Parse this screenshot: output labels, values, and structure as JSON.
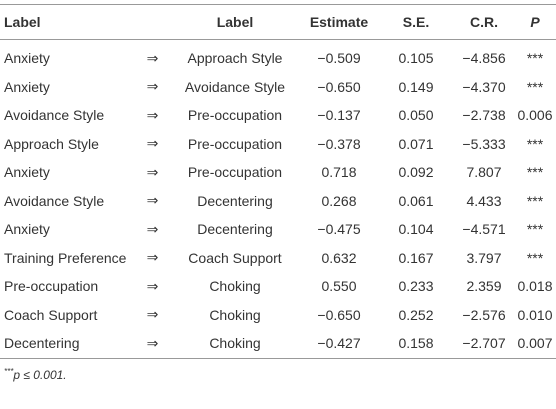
{
  "header": [
    "Label",
    "Label",
    "Estimate",
    "S.E.",
    "C.R.",
    "P"
  ],
  "rows": [
    [
      "Anxiety",
      "⇒",
      "Approach Style",
      "−0.509",
      "0.105",
      "−4.856",
      "***"
    ],
    [
      "Anxiety",
      "⇒",
      "Avoidance Style",
      "−0.650",
      "0.149",
      "−4.370",
      "***"
    ],
    [
      "Avoidance Style",
      "⇒",
      "Pre-occupation",
      "−0.137",
      "0.050",
      "−2.738",
      "0.006"
    ],
    [
      "Approach Style",
      "⇒",
      "Pre-occupation",
      "−0.378",
      "0.071",
      "−5.333",
      "***"
    ],
    [
      "Anxiety",
      "⇒",
      "Pre-occupation",
      "0.718",
      "0.092",
      "7.807",
      "***"
    ],
    [
      "Avoidance Style",
      "⇒",
      "Decentering",
      "0.268",
      "0.061",
      "4.433",
      "***"
    ],
    [
      "Anxiety",
      "⇒",
      "Decentering",
      "−0.475",
      "0.104",
      "−4.571",
      "***"
    ],
    [
      "Training Preference",
      "⇒",
      "Coach Support",
      "0.632",
      "0.167",
      "3.797",
      "***"
    ],
    [
      "Pre-occupation",
      "⇒",
      "Choking",
      "0.550",
      "0.233",
      "2.359",
      "0.018"
    ],
    [
      "Coach Support",
      "⇒",
      "Choking",
      "−0.650",
      "0.252",
      "−2.576",
      "0.010"
    ],
    [
      "Decentering",
      "⇒",
      "Choking",
      "−0.427",
      "0.158",
      "−2.707",
      "0.007"
    ]
  ],
  "footnote": {
    "mark": "***",
    "text": "p ≤ 0.001."
  }
}
